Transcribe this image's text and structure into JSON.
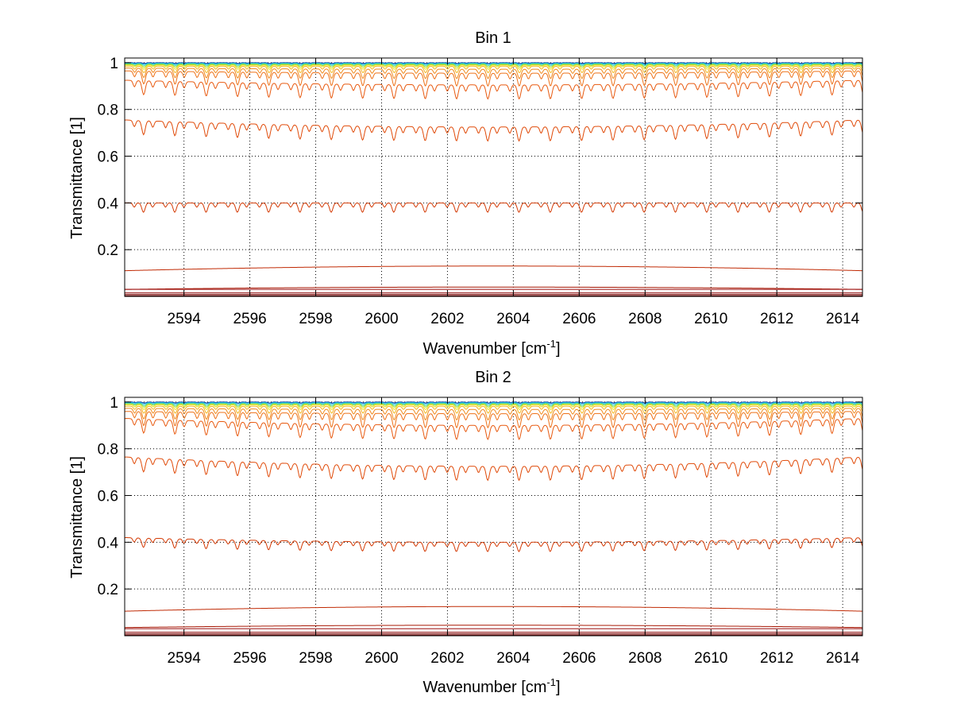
{
  "chart_data": [
    {
      "type": "line",
      "title": "Bin 1",
      "xlabel": "Wavenumber [cm",
      "xlabel_sup": "-1",
      "xlabel_suffix": "]",
      "ylabel": "Transmittance [1]",
      "xlim": [
        2592.2,
        2614.6
      ],
      "ylim": [
        0,
        1.02
      ],
      "grid": true,
      "xticks": [
        2594,
        2596,
        2598,
        2600,
        2602,
        2604,
        2606,
        2608,
        2610,
        2612,
        2614
      ],
      "yticks": [
        0.2,
        0.4,
        0.6,
        0.8,
        1
      ],
      "ytick_labels": [
        "0.2",
        "0.4",
        "0.6",
        "0.8",
        "1"
      ],
      "line_period_cm": 0.95,
      "series": [
        {
          "base": 1.0,
          "tilt": 0.0,
          "depth": 0.003,
          "color": "#0b3fa3"
        },
        {
          "base": 0.998,
          "tilt": 0.0,
          "depth": 0.005,
          "color": "#1aa5e0"
        },
        {
          "base": 0.996,
          "tilt": 0.0,
          "depth": 0.008,
          "color": "#2ed4b0"
        },
        {
          "base": 0.993,
          "tilt": 0.0,
          "depth": 0.012,
          "color": "#9ad82e"
        },
        {
          "base": 0.99,
          "tilt": 0.0,
          "depth": 0.018,
          "color": "#e8e11a"
        },
        {
          "base": 0.985,
          "tilt": 0.0,
          "depth": 0.028,
          "color": "#f5b51c"
        },
        {
          "base": 0.972,
          "tilt": 0.005,
          "depth": 0.04,
          "color": "#f08a1c"
        },
        {
          "base": 0.955,
          "tilt": 0.01,
          "depth": 0.055,
          "color": "#ee7118"
        },
        {
          "base": 0.905,
          "tilt": 0.02,
          "depth": 0.06,
          "color": "#e85a10"
        },
        {
          "base": 0.725,
          "tilt": 0.03,
          "depth": 0.06,
          "color": "#e04a08"
        },
        {
          "base": 0.4,
          "tilt": 0.0,
          "depth": 0.04,
          "color": "#d43a04"
        },
        {
          "base": 0.13,
          "tilt": -0.02,
          "depth": 0.0,
          "color": "#c02a04"
        },
        {
          "base": 0.04,
          "tilt": -0.01,
          "depth": 0.0,
          "color": "#a81804"
        },
        {
          "base": 0.03,
          "tilt": 0.0,
          "depth": 0.0,
          "color": "#990808"
        },
        {
          "base": 0.015,
          "tilt": 0.0,
          "depth": 0.0,
          "color": "#8a0000"
        },
        {
          "base": 0.008,
          "tilt": 0.0,
          "depth": 0.0,
          "color": "#7a0000"
        },
        {
          "base": 0.003,
          "tilt": 0.0,
          "depth": 0.0,
          "color": "#6b0000"
        }
      ]
    },
    {
      "type": "line",
      "title": "Bin 2",
      "xlabel": "Wavenumber [cm",
      "xlabel_sup": "-1",
      "xlabel_suffix": "]",
      "ylabel": "Transmittance [1]",
      "xlim": [
        2592.2,
        2614.6
      ],
      "ylim": [
        0,
        1.02
      ],
      "grid": true,
      "xticks": [
        2594,
        2596,
        2598,
        2600,
        2602,
        2604,
        2606,
        2608,
        2610,
        2612,
        2614
      ],
      "yticks": [
        0.2,
        0.4,
        0.6,
        0.8,
        1
      ],
      "ytick_labels": [
        "0.2",
        "0.4",
        "0.6",
        "0.8",
        "1"
      ],
      "line_period_cm": 0.95,
      "series": [
        {
          "base": 1.0,
          "tilt": 0.0,
          "depth": 0.004,
          "color": "#0b3fa3"
        },
        {
          "base": 0.998,
          "tilt": 0.0,
          "depth": 0.006,
          "color": "#1aa5e0"
        },
        {
          "base": 0.995,
          "tilt": 0.0,
          "depth": 0.01,
          "color": "#2ed4b0"
        },
        {
          "base": 0.992,
          "tilt": 0.0,
          "depth": 0.014,
          "color": "#9ad82e"
        },
        {
          "base": 0.988,
          "tilt": 0.0,
          "depth": 0.02,
          "color": "#e8e11a"
        },
        {
          "base": 0.982,
          "tilt": 0.0,
          "depth": 0.03,
          "color": "#f5b51c"
        },
        {
          "base": 0.968,
          "tilt": 0.005,
          "depth": 0.045,
          "color": "#f08a1c"
        },
        {
          "base": 0.95,
          "tilt": 0.01,
          "depth": 0.06,
          "color": "#ee7118"
        },
        {
          "base": 0.9,
          "tilt": 0.03,
          "depth": 0.06,
          "color": "#e85a10"
        },
        {
          "base": 0.725,
          "tilt": 0.04,
          "depth": 0.06,
          "color": "#e04a08"
        },
        {
          "base": 0.4,
          "tilt": 0.02,
          "depth": 0.04,
          "color": "#d43a04"
        },
        {
          "base": 0.125,
          "tilt": -0.02,
          "depth": 0.0,
          "color": "#c02a04"
        },
        {
          "base": 0.045,
          "tilt": -0.01,
          "depth": 0.0,
          "color": "#a81804"
        },
        {
          "base": 0.03,
          "tilt": 0.0,
          "depth": 0.0,
          "color": "#990808"
        },
        {
          "base": 0.015,
          "tilt": 0.0,
          "depth": 0.0,
          "color": "#8a0000"
        },
        {
          "base": 0.008,
          "tilt": 0.0,
          "depth": 0.0,
          "color": "#7a0000"
        },
        {
          "base": 0.003,
          "tilt": 0.0,
          "depth": 0.0,
          "color": "#6b0000"
        }
      ]
    }
  ]
}
